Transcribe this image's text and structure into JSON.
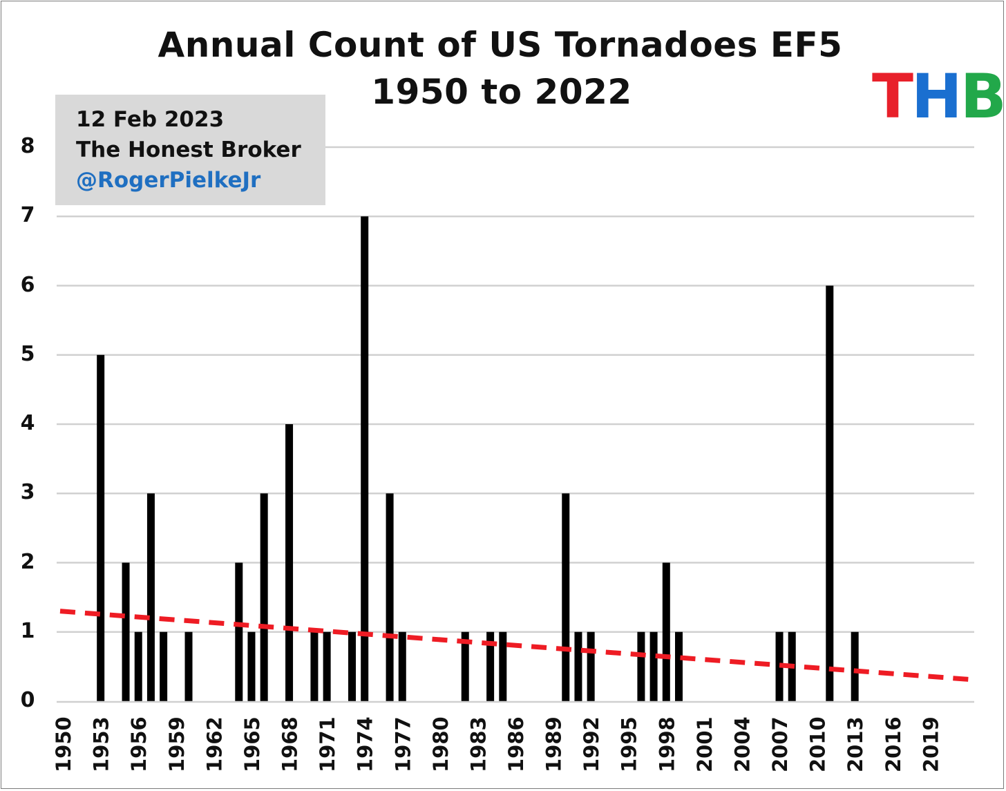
{
  "header": {
    "title_line1": "Annual Count of US Tornadoes EF5",
    "title_line2": "1950 to 2022"
  },
  "credit": {
    "date": "12 Feb 2023",
    "publication": "The Honest Broker",
    "handle": "@RogerPielkeJr"
  },
  "logo": {
    "letters": [
      "T",
      "H",
      "B"
    ],
    "colors": [
      "#e8202a",
      "#1a6fd0",
      "#22a84a"
    ]
  },
  "colors": {
    "bars": "#000000",
    "trend": "#ee1c24",
    "grid": "#d0d0d0",
    "handle": "#1f6fc1",
    "credit_box": "#d9d9d9"
  },
  "chart_data": {
    "type": "bar",
    "title": "Annual Count of US Tornadoes EF5 1950 to 2022",
    "xlabel": "",
    "ylabel": "",
    "ylim": [
      0,
      8
    ],
    "yticks": [
      0,
      1,
      2,
      3,
      4,
      5,
      6,
      7,
      8
    ],
    "x_tick_labels": [
      "1950",
      "1953",
      "1956",
      "1959",
      "1962",
      "1965",
      "1968",
      "1971",
      "1974",
      "1977",
      "1980",
      "1983",
      "1986",
      "1989",
      "1992",
      "1995",
      "1998",
      "2001",
      "2004",
      "2007",
      "2010",
      "2013",
      "2016",
      "2019"
    ],
    "categories": [
      1950,
      1951,
      1952,
      1953,
      1954,
      1955,
      1956,
      1957,
      1958,
      1959,
      1960,
      1961,
      1962,
      1963,
      1964,
      1965,
      1966,
      1967,
      1968,
      1969,
      1970,
      1971,
      1972,
      1973,
      1974,
      1975,
      1976,
      1977,
      1978,
      1979,
      1980,
      1981,
      1982,
      1983,
      1984,
      1985,
      1986,
      1987,
      1988,
      1989,
      1990,
      1991,
      1992,
      1993,
      1994,
      1995,
      1996,
      1997,
      1998,
      1999,
      2000,
      2001,
      2002,
      2003,
      2004,
      2005,
      2006,
      2007,
      2008,
      2009,
      2010,
      2011,
      2012,
      2013,
      2014,
      2015,
      2016,
      2017,
      2018,
      2019,
      2020,
      2021,
      2022
    ],
    "values": [
      0,
      0,
      0,
      5,
      0,
      2,
      1,
      3,
      1,
      0,
      1,
      0,
      0,
      0,
      2,
      1,
      3,
      0,
      4,
      0,
      1,
      1,
      0,
      1,
      7,
      0,
      3,
      1,
      0,
      0,
      0,
      0,
      1,
      0,
      1,
      1,
      0,
      0,
      0,
      0,
      3,
      1,
      1,
      0,
      0,
      0,
      1,
      1,
      2,
      1,
      0,
      0,
      0,
      0,
      0,
      0,
      0,
      1,
      1,
      0,
      0,
      6,
      0,
      1,
      0,
      0,
      0,
      0,
      0,
      0,
      0,
      0,
      0
    ],
    "trend": {
      "name": "Linear trend",
      "style": "dashed",
      "x": [
        1950,
        2022
      ],
      "y": [
        1.3,
        0.31
      ]
    },
    "grid": true
  }
}
